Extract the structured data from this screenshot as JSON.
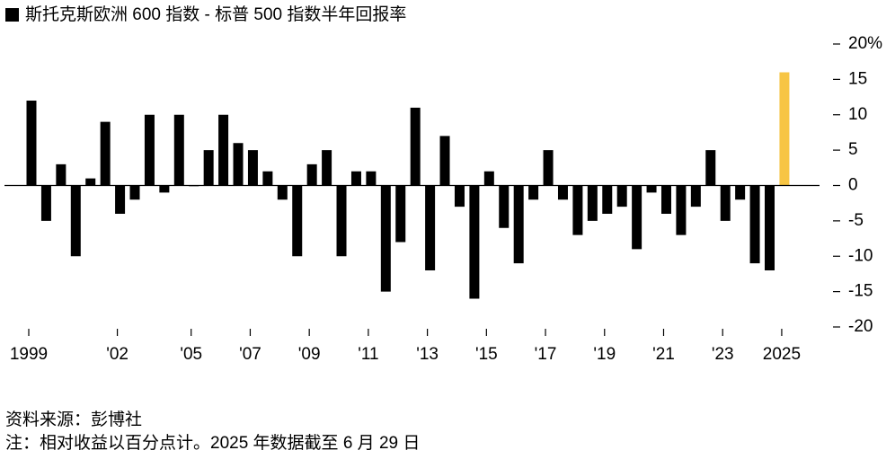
{
  "chart_data": {
    "type": "bar",
    "title": "斯托克斯欧洲 600 指数 - 标普 500 指数半年回报率",
    "source": "资料来源：彭博社",
    "note": "注：相对收益以百分点计。2025 年数据截至 6 月 29 日",
    "categories": [
      "1999",
      null,
      null,
      null,
      null,
      null,
      "'02",
      null,
      null,
      null,
      null,
      "'05",
      null,
      null,
      null,
      "'07",
      null,
      null,
      null,
      "'09",
      null,
      null,
      null,
      "'11",
      null,
      null,
      null,
      "'13",
      null,
      null,
      null,
      "'15",
      null,
      null,
      null,
      "'17",
      null,
      null,
      null,
      "'19",
      null,
      null,
      null,
      "'21",
      null,
      null,
      null,
      "'23",
      null,
      null,
      null,
      "2025"
    ],
    "values": [
      12,
      -5,
      3,
      -10,
      1,
      9,
      -4,
      -2,
      10,
      -1,
      10,
      0,
      5,
      10,
      6,
      5,
      2,
      -2,
      -10,
      3,
      5,
      -10,
      2,
      2,
      -15,
      -8,
      11,
      -12,
      7,
      -3,
      -16,
      2,
      -6,
      -11,
      -2,
      5,
      -2,
      -7,
      -5,
      -4,
      -3,
      -9,
      -1,
      -4,
      -7,
      -3,
      5,
      -5,
      -2,
      -11,
      -12,
      16
    ],
    "colors": [
      "#000000",
      "#000000",
      "#000000",
      "#000000",
      "#000000",
      "#000000",
      "#000000",
      "#000000",
      "#000000",
      "#000000",
      "#000000",
      "#000000",
      "#000000",
      "#000000",
      "#000000",
      "#000000",
      "#000000",
      "#000000",
      "#000000",
      "#000000",
      "#000000",
      "#000000",
      "#000000",
      "#000000",
      "#000000",
      "#000000",
      "#000000",
      "#000000",
      "#000000",
      "#000000",
      "#000000",
      "#000000",
      "#000000",
      "#000000",
      "#000000",
      "#000000",
      "#000000",
      "#000000",
      "#000000",
      "#000000",
      "#000000",
      "#000000",
      "#000000",
      "#000000",
      "#000000",
      "#000000",
      "#000000",
      "#000000",
      "#000000",
      "#000000",
      "#000000",
      "#f7c544"
    ],
    "ylim": [
      -20,
      20
    ],
    "yticks": [
      {
        "value": 20,
        "label": "20%"
      },
      15,
      10,
      5,
      0,
      -5,
      -10,
      -15,
      -20
    ]
  }
}
